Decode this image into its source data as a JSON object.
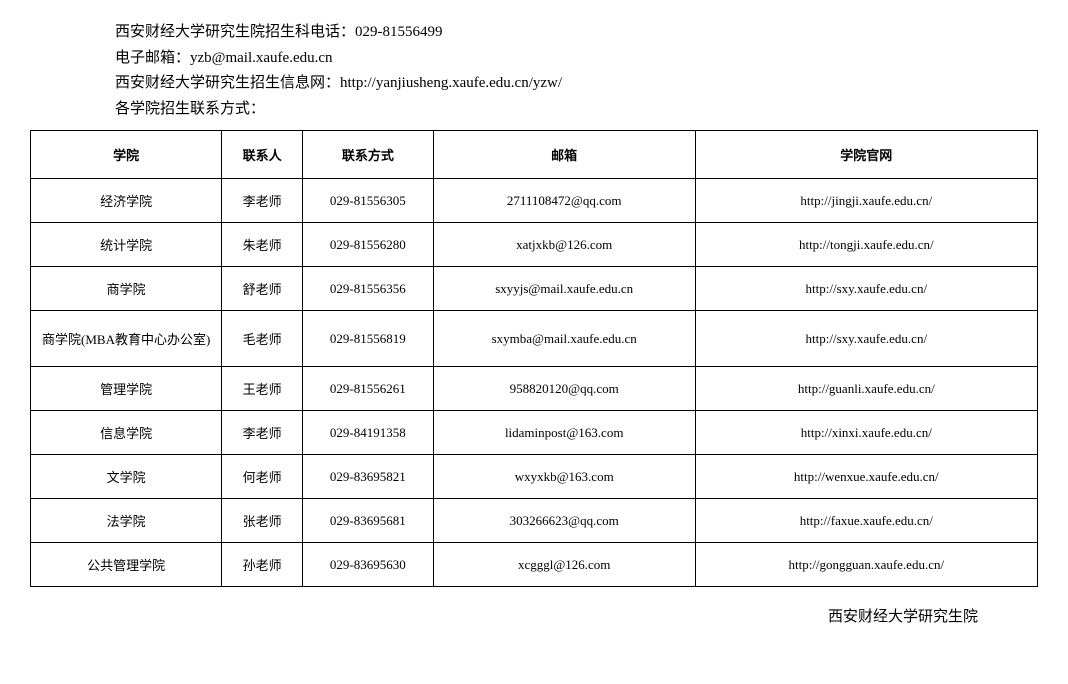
{
  "header": {
    "line1": "西安财经大学研究生院招生科电话：029-81556499",
    "line2": "电子邮箱：yzb@mail.xaufe.edu.cn",
    "line3": "西安财经大学研究生招生信息网：http://yanjiusheng.xaufe.edu.cn/yzw/",
    "line4": "各学院招生联系方式："
  },
  "table": {
    "columns": [
      "学院",
      "联系人",
      "联系方式",
      "邮箱",
      "学院官网"
    ],
    "rows": [
      [
        "经济学院",
        "李老师",
        "029-81556305",
        "2711108472@qq.com",
        "http://jingji.xaufe.edu.cn/"
      ],
      [
        "统计学院",
        "朱老师",
        "029-81556280",
        "xatjxkb@126.com",
        "http://tongji.xaufe.edu.cn/"
      ],
      [
        "商学院",
        "舒老师",
        "029-81556356",
        "sxyyjs@mail.xaufe.edu.cn",
        "http://sxy.xaufe.edu.cn/"
      ],
      [
        "商学院(MBA教育中心办公室)",
        "毛老师",
        "029-81556819",
        "sxymba@mail.xaufe.edu.cn",
        "http://sxy.xaufe.edu.cn/"
      ],
      [
        "管理学院",
        "王老师",
        "029-81556261",
        "958820120@qq.com",
        "http://guanli.xaufe.edu.cn/"
      ],
      [
        "信息学院",
        "李老师",
        "029-84191358",
        "lidaminpost@163.com",
        "http://xinxi.xaufe.edu.cn/"
      ],
      [
        "文学院",
        "何老师",
        "029-83695821",
        "wxyxkb@163.com",
        "http://wenxue.xaufe.edu.cn/"
      ],
      [
        "法学院",
        "张老师",
        "029-83695681",
        "303266623@qq.com",
        "http://faxue.xaufe.edu.cn/"
      ],
      [
        "公共管理学院",
        "孙老师",
        "029-83695630",
        "xcgggl@126.com",
        "http://gongguan.xaufe.edu.cn/"
      ]
    ],
    "tall_row_index": 3
  },
  "footer": {
    "text": "西安财经大学研究生院"
  },
  "styling": {
    "background_color": "#ffffff",
    "text_color": "#000000",
    "border_color": "#000000",
    "font_family": "SimSun",
    "header_fontsize": 15,
    "table_fontsize": 13,
    "column_widths_pct": [
      19,
      8,
      13,
      26,
      34
    ]
  }
}
